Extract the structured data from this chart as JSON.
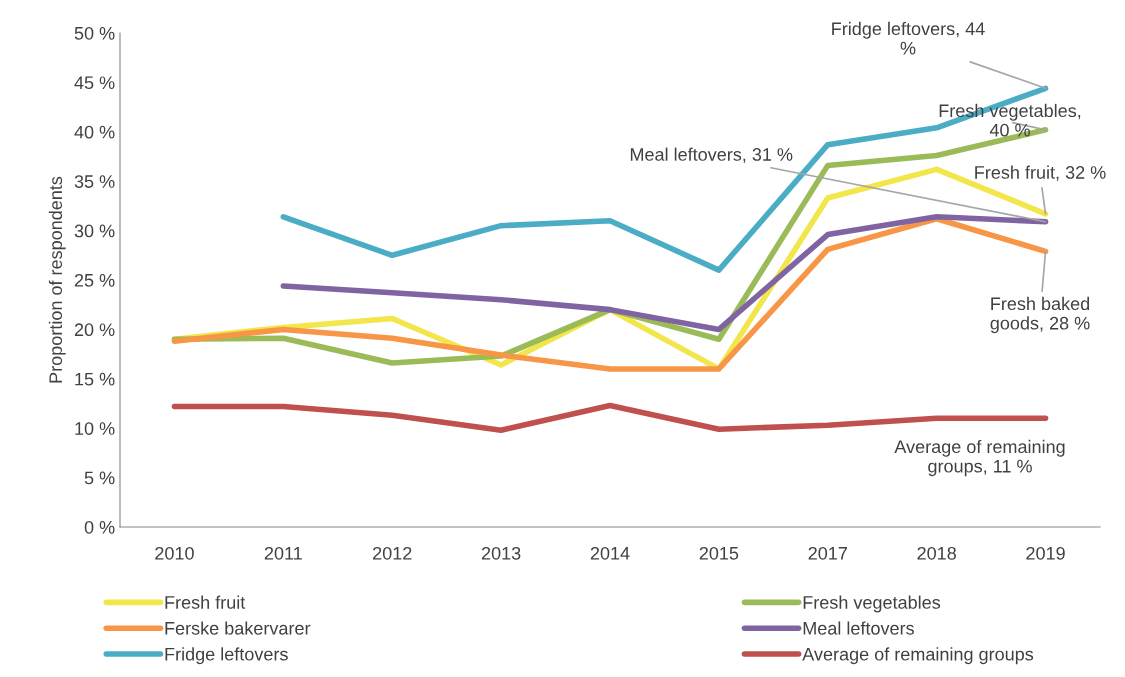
{
  "chart_data": {
    "type": "line",
    "ylabel": "Proportion of respondents",
    "categories": [
      "2010",
      "2011",
      "2012",
      "2013",
      "2014",
      "2015",
      "2017",
      "2018",
      "2019"
    ],
    "series": [
      {
        "name": "Fresh fruit",
        "color": "#f2e64a",
        "values": [
          19.0,
          20.2,
          21.1,
          16.4,
          22.0,
          16.0,
          33.3,
          36.2,
          31.7
        ]
      },
      {
        "name": "Fresh vegetables",
        "color": "#9bbb59",
        "values": [
          19.0,
          19.1,
          16.6,
          17.3,
          22.0,
          19.0,
          36.6,
          37.6,
          40.2
        ]
      },
      {
        "name": "Ferske bakervarer",
        "color": "#f79646",
        "values": [
          18.8,
          20.0,
          19.1,
          17.4,
          16.0,
          16.0,
          28.1,
          31.2,
          27.9
        ]
      },
      {
        "name": "Meal leftovers",
        "color": "#8064a2",
        "values": [
          null,
          24.4,
          23.7,
          23.0,
          22.0,
          20.0,
          29.6,
          31.4,
          30.9
        ]
      },
      {
        "name": "Fridge leftovers",
        "color": "#4bacc6",
        "values": [
          null,
          31.4,
          27.5,
          30.5,
          31.0,
          26.0,
          38.7,
          40.4,
          44.4
        ]
      },
      {
        "name": "Average of remaining groups",
        "color": "#c0504d",
        "values": [
          12.2,
          12.2,
          11.3,
          9.8,
          12.3,
          9.9,
          10.3,
          11.0,
          11.0
        ]
      }
    ],
    "ylim": [
      0,
      50
    ],
    "yticks": [
      {
        "value": 0,
        "label": "0 %"
      },
      {
        "value": 5,
        "label": "5 %"
      },
      {
        "value": 10,
        "label": "10 %"
      },
      {
        "value": 15,
        "label": "15 %"
      },
      {
        "value": 20,
        "label": "20 %"
      },
      {
        "value": 25,
        "label": "25 %"
      },
      {
        "value": 30,
        "label": "30 %"
      },
      {
        "value": 35,
        "label": "35 %"
      },
      {
        "value": 40,
        "label": "40 %"
      },
      {
        "value": 45,
        "label": "45 %"
      },
      {
        "value": 50,
        "label": "50 %"
      }
    ],
    "annotations": [
      {
        "text": "Fridge leftovers, 44\n%",
        "x": "2019",
        "y": 44.4
      },
      {
        "text": "Fresh vegetables,\n40 %",
        "x": "2019",
        "y": 40.2
      },
      {
        "text": "Meal leftovers, 31 %",
        "x": "2019",
        "y": 30.9
      },
      {
        "text": "Fresh fruit, 32 %",
        "x": "2019",
        "y": 31.7
      },
      {
        "text": "Fresh baked\ngoods, 28 %",
        "x": "2019",
        "y": 27.9
      },
      {
        "text": "Average of remaining\ngroups, 11 %",
        "x": "2019",
        "y": 11.0
      }
    ],
    "legend": "bottom",
    "grid": false,
    "marker": "none",
    "line_style": "solid"
  }
}
